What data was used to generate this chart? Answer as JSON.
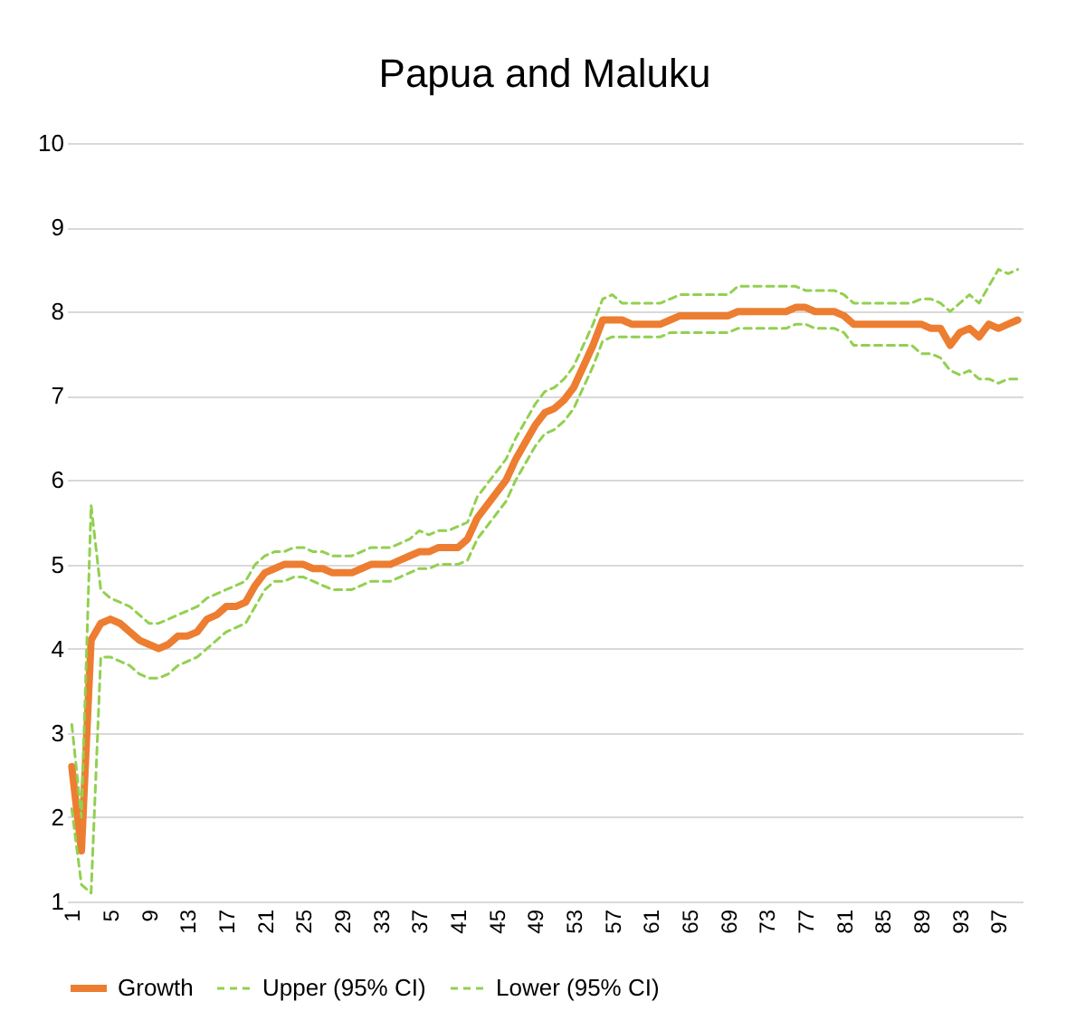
{
  "chart_data": {
    "type": "line",
    "title": "Papua and Maluku",
    "categories": [
      "1",
      null,
      null,
      null,
      "5",
      null,
      null,
      null,
      "9",
      null,
      null,
      null,
      "13",
      null,
      null,
      null,
      "17",
      null,
      null,
      null,
      "21",
      null,
      null,
      null,
      "25",
      null,
      null,
      null,
      "29",
      null,
      null,
      null,
      "33",
      null,
      null,
      null,
      "37",
      null,
      null,
      null,
      "41",
      null,
      null,
      null,
      "45",
      null,
      null,
      null,
      "49",
      null,
      null,
      null,
      "53",
      null,
      null,
      null,
      "57",
      null,
      null,
      null,
      "61",
      null,
      null,
      null,
      "65",
      null,
      null,
      null,
      "69",
      null,
      null,
      null,
      "73",
      null,
      null,
      null,
      "77",
      null,
      null,
      null,
      "81",
      null,
      null,
      null,
      "85",
      null,
      null,
      null,
      "89",
      null,
      null,
      null,
      "93",
      null,
      null,
      null,
      "97",
      null,
      null
    ],
    "series": [
      {
        "name": "Growth",
        "color": "#ed7d31",
        "line_style": "solid",
        "values": [
          2.6,
          1.6,
          4.1,
          4.3,
          4.35,
          4.3,
          4.2,
          4.1,
          4.05,
          4.0,
          4.05,
          4.15,
          4.15,
          4.2,
          4.35,
          4.4,
          4.5,
          4.5,
          4.55,
          4.75,
          4.9,
          4.95,
          5.0,
          5.0,
          5.0,
          4.95,
          4.95,
          4.9,
          4.9,
          4.9,
          4.95,
          5.0,
          5.0,
          5.0,
          5.05,
          5.1,
          5.15,
          5.15,
          5.2,
          5.2,
          5.2,
          5.3,
          5.55,
          5.7,
          5.85,
          6.0,
          6.25,
          6.45,
          6.65,
          6.8,
          6.85,
          6.95,
          7.1,
          7.35,
          7.6,
          7.9,
          7.9,
          7.9,
          7.85,
          7.85,
          7.85,
          7.85,
          7.9,
          7.95,
          7.95,
          7.95,
          7.95,
          7.95,
          7.95,
          8.0,
          8.0,
          8.0,
          8.0,
          8.0,
          8.0,
          8.05,
          8.05,
          8.0,
          8.0,
          8.0,
          7.95,
          7.85,
          7.85,
          7.85,
          7.85,
          7.85,
          7.85,
          7.85,
          7.85,
          7.8,
          7.8,
          7.6,
          7.75,
          7.8,
          7.7,
          7.85,
          7.8,
          7.85,
          7.9
        ]
      },
      {
        "name": "Upper (95% CI)",
        "color": "#92d050",
        "line_style": "dashed",
        "values": [
          3.1,
          2.0,
          5.7,
          4.7,
          4.6,
          4.55,
          4.5,
          4.4,
          4.3,
          4.3,
          4.35,
          4.4,
          4.45,
          4.5,
          4.6,
          4.65,
          4.7,
          4.75,
          4.8,
          5.0,
          5.1,
          5.15,
          5.15,
          5.2,
          5.2,
          5.15,
          5.15,
          5.1,
          5.1,
          5.1,
          5.15,
          5.2,
          5.2,
          5.2,
          5.25,
          5.3,
          5.4,
          5.35,
          5.4,
          5.4,
          5.45,
          5.5,
          5.8,
          5.95,
          6.1,
          6.25,
          6.5,
          6.7,
          6.9,
          7.05,
          7.1,
          7.2,
          7.35,
          7.6,
          7.85,
          8.15,
          8.2,
          8.1,
          8.1,
          8.1,
          8.1,
          8.1,
          8.15,
          8.2,
          8.2,
          8.2,
          8.2,
          8.2,
          8.2,
          8.3,
          8.3,
          8.3,
          8.3,
          8.3,
          8.3,
          8.3,
          8.25,
          8.25,
          8.25,
          8.25,
          8.2,
          8.1,
          8.1,
          8.1,
          8.1,
          8.1,
          8.1,
          8.1,
          8.15,
          8.15,
          8.1,
          8.0,
          8.1,
          8.2,
          8.1,
          8.3,
          8.5,
          8.45,
          8.5
        ]
      },
      {
        "name": "Lower (95% CI)",
        "color": "#92d050",
        "line_style": "dashed",
        "values": [
          2.1,
          1.2,
          1.1,
          3.9,
          3.9,
          3.85,
          3.8,
          3.7,
          3.65,
          3.65,
          3.7,
          3.8,
          3.85,
          3.9,
          4.0,
          4.1,
          4.2,
          4.25,
          4.3,
          4.5,
          4.7,
          4.8,
          4.8,
          4.85,
          4.85,
          4.8,
          4.75,
          4.7,
          4.7,
          4.7,
          4.75,
          4.8,
          4.8,
          4.8,
          4.85,
          4.9,
          4.95,
          4.95,
          5.0,
          5.0,
          5.0,
          5.05,
          5.3,
          5.45,
          5.6,
          5.75,
          6.0,
          6.2,
          6.4,
          6.55,
          6.6,
          6.7,
          6.85,
          7.1,
          7.35,
          7.65,
          7.7,
          7.7,
          7.7,
          7.7,
          7.7,
          7.7,
          7.75,
          7.75,
          7.75,
          7.75,
          7.75,
          7.75,
          7.75,
          7.8,
          7.8,
          7.8,
          7.8,
          7.8,
          7.8,
          7.85,
          7.85,
          7.8,
          7.8,
          7.8,
          7.75,
          7.6,
          7.6,
          7.6,
          7.6,
          7.6,
          7.6,
          7.6,
          7.5,
          7.5,
          7.45,
          7.3,
          7.25,
          7.3,
          7.2,
          7.2,
          7.15,
          7.2,
          7.2
        ]
      }
    ],
    "ylim": [
      1,
      10
    ],
    "yticks": [
      1,
      2,
      3,
      4,
      5,
      6,
      7,
      8,
      9,
      10
    ],
    "grid": "y",
    "legend": "bottom"
  }
}
